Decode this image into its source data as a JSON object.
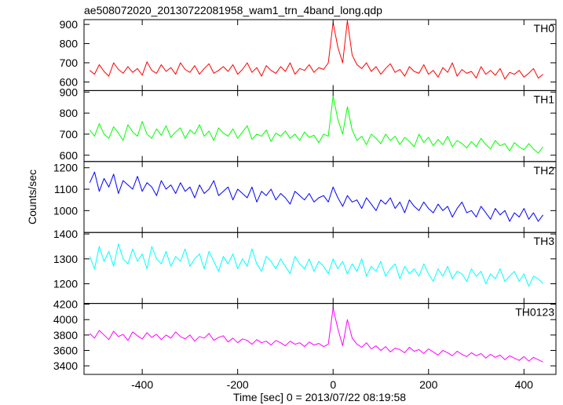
{
  "chart_data": {
    "type": "line",
    "title": "ae508072020_20130722081958_wam1_trn_4band_long.qdp",
    "xlabel": "Time [sec] 0 = 2013/07/22 08:19:58",
    "ylabel": "Counts/sec",
    "xlim": [
      -522,
      467
    ],
    "xticks": [
      -400,
      -200,
      0,
      200,
      400
    ],
    "x": [
      -510,
      -500,
      -490,
      -480,
      -470,
      -460,
      -450,
      -440,
      -430,
      -420,
      -410,
      -400,
      -390,
      -380,
      -370,
      -360,
      -350,
      -340,
      -330,
      -320,
      -310,
      -300,
      -290,
      -280,
      -270,
      -260,
      -250,
      -240,
      -230,
      -220,
      -210,
      -200,
      -190,
      -180,
      -170,
      -160,
      -150,
      -140,
      -130,
      -120,
      -110,
      -100,
      -90,
      -80,
      -70,
      -60,
      -50,
      -40,
      -30,
      -20,
      -10,
      0,
      10,
      20,
      30,
      40,
      50,
      60,
      70,
      80,
      90,
      100,
      110,
      120,
      130,
      140,
      150,
      160,
      170,
      180,
      190,
      200,
      210,
      220,
      230,
      240,
      250,
      260,
      270,
      280,
      290,
      300,
      310,
      320,
      330,
      340,
      350,
      360,
      370,
      380,
      390,
      400,
      410,
      420,
      430,
      440
    ],
    "series": [
      {
        "name": "TH0",
        "color": "#ff0000",
        "ylim": [
          555,
          925
        ],
        "yticks": [
          600,
          700,
          800,
          900
        ],
        "values": [
          660,
          640,
          690,
          655,
          630,
          700,
          665,
          645,
          680,
          650,
          670,
          635,
          705,
          660,
          645,
          690,
          655,
          675,
          640,
          700,
          665,
          650,
          685,
          640,
          670,
          695,
          645,
          660,
          680,
          655,
          690,
          640,
          665,
          700,
          650,
          675,
          630,
          685,
          660,
          645,
          680,
          655,
          700,
          640,
          670,
          660,
          690,
          650,
          675,
          665,
          700,
          910,
          780,
          700,
          920,
          740,
          690,
          670,
          700,
          655,
          680,
          640,
          670,
          695,
          650,
          665,
          630,
          680,
          655,
          645,
          690,
          640,
          660,
          625,
          675,
          650,
          700,
          630,
          665,
          645,
          655,
          620,
          680,
          640,
          660,
          635,
          670,
          615,
          650,
          640,
          660,
          625,
          645,
          670,
          620,
          640
        ]
      },
      {
        "name": "TH1",
        "color": "#00ff00",
        "ylim": [
          570,
          907
        ],
        "yticks": [
          600,
          700,
          800,
          900
        ],
        "values": [
          720,
          690,
          750,
          700,
          680,
          735,
          705,
          670,
          745,
          710,
          690,
          760,
          700,
          680,
          725,
          695,
          740,
          685,
          710,
          730,
          680,
          720,
          700,
          745,
          690,
          715,
          670,
          730,
          705,
          690,
          725,
          680,
          710,
          740,
          675,
          700,
          690,
          720,
          665,
          705,
          690,
          715,
          680,
          700,
          670,
          710,
          685,
          695,
          660,
          700,
          690,
          880,
          770,
          700,
          830,
          720,
          670,
          690,
          650,
          700,
          680,
          655,
          700,
          670,
          690,
          650,
          685,
          665,
          640,
          700,
          660,
          685,
          645,
          675,
          650,
          690,
          640,
          670,
          655,
          635,
          665,
          640,
          680,
          650,
          630,
          670,
          645,
          655,
          620,
          660,
          640,
          625,
          655,
          630,
          610,
          640
        ]
      },
      {
        "name": "TH2",
        "color": "#0000ff",
        "ylim": [
          898,
          1229
        ],
        "yticks": [
          1000,
          1100,
          1200
        ],
        "values": [
          1130,
          1180,
          1090,
          1150,
          1110,
          1170,
          1080,
          1140,
          1120,
          1100,
          1160,
          1090,
          1130,
          1110,
          1070,
          1140,
          1100,
          1120,
          1080,
          1130,
          1090,
          1110,
          1060,
          1120,
          1080,
          1100,
          1140,
          1070,
          1090,
          1110,
          1050,
          1100,
          1080,
          1060,
          1110,
          1040,
          1090,
          1070,
          1100,
          1050,
          1080,
          1060,
          1030,
          1090,
          1070,
          1050,
          1080,
          1040,
          1060,
          1070,
          1040,
          1110,
          1060,
          1020,
          1070,
          1040,
          1050,
          1010,
          1060,
          1030,
          1000,
          1050,
          1030,
          1060,
          1010,
          1040,
          990,
          1050,
          1020,
          1000,
          1040,
          1010,
          990,
          1030,
          1000,
          1020,
          970,
          1010,
          1040,
          990,
          1000,
          970,
          1020,
          990,
          960,
          1010,
          980,
          1000,
          950,
          990,
          970,
          1010,
          960,
          990,
          950,
          980
        ]
      },
      {
        "name": "TH3",
        "color": "#00ffff",
        "ylim": [
          1121,
          1406
        ],
        "yticks": [
          1200,
          1300,
          1400
        ],
        "values": [
          1310,
          1260,
          1350,
          1290,
          1330,
          1270,
          1360,
          1300,
          1280,
          1340,
          1290,
          1320,
          1260,
          1350,
          1300,
          1280,
          1330,
          1270,
          1310,
          1290,
          1340,
          1270,
          1300,
          1320,
          1260,
          1330,
          1290,
          1250,
          1310,
          1280,
          1320,
          1260,
          1300,
          1270,
          1340,
          1280,
          1250,
          1310,
          1290,
          1260,
          1300,
          1270,
          1240,
          1310,
          1280,
          1260,
          1300,
          1250,
          1290,
          1270,
          1240,
          1300,
          1260,
          1290,
          1240,
          1280,
          1250,
          1300,
          1230,
          1270,
          1250,
          1290,
          1230,
          1260,
          1280,
          1220,
          1270,
          1240,
          1260,
          1230,
          1280,
          1240,
          1210,
          1260,
          1230,
          1270,
          1220,
          1250,
          1240,
          1210,
          1260,
          1230,
          1250,
          1200,
          1240,
          1220,
          1260,
          1210,
          1230,
          1250,
          1210,
          1240,
          1190,
          1230,
          1220,
          1200
        ]
      },
      {
        "name": "TH0123",
        "color": "#ff00ff",
        "ylim": [
          3289,
          4210
        ],
        "yticks": [
          3400,
          3600,
          3800,
          4000,
          4200
        ],
        "values": [
          3820,
          3760,
          3860,
          3800,
          3740,
          3850,
          3780,
          3810,
          3730,
          3840,
          3790,
          3750,
          3830,
          3770,
          3810,
          3740,
          3800,
          3760,
          3840,
          3780,
          3750,
          3800,
          3720,
          3780,
          3760,
          3820,
          3730,
          3770,
          3790,
          3710,
          3760,
          3700,
          3750,
          3730,
          3680,
          3740,
          3700,
          3720,
          3670,
          3730,
          3700,
          3660,
          3720,
          3680,
          3700,
          3650,
          3710,
          3670,
          3690,
          3650,
          3680,
          4150,
          3880,
          3660,
          4000,
          3760,
          3680,
          3640,
          3700,
          3620,
          3660,
          3600,
          3650,
          3580,
          3630,
          3610,
          3570,
          3640,
          3590,
          3610,
          3560,
          3620,
          3580,
          3540,
          3600,
          3570,
          3530,
          3590,
          3550,
          3520,
          3570,
          3530,
          3560,
          3500,
          3550,
          3510,
          3540,
          3480,
          3530,
          3500,
          3470,
          3520,
          3460,
          3510,
          3480,
          3450
        ]
      }
    ]
  }
}
